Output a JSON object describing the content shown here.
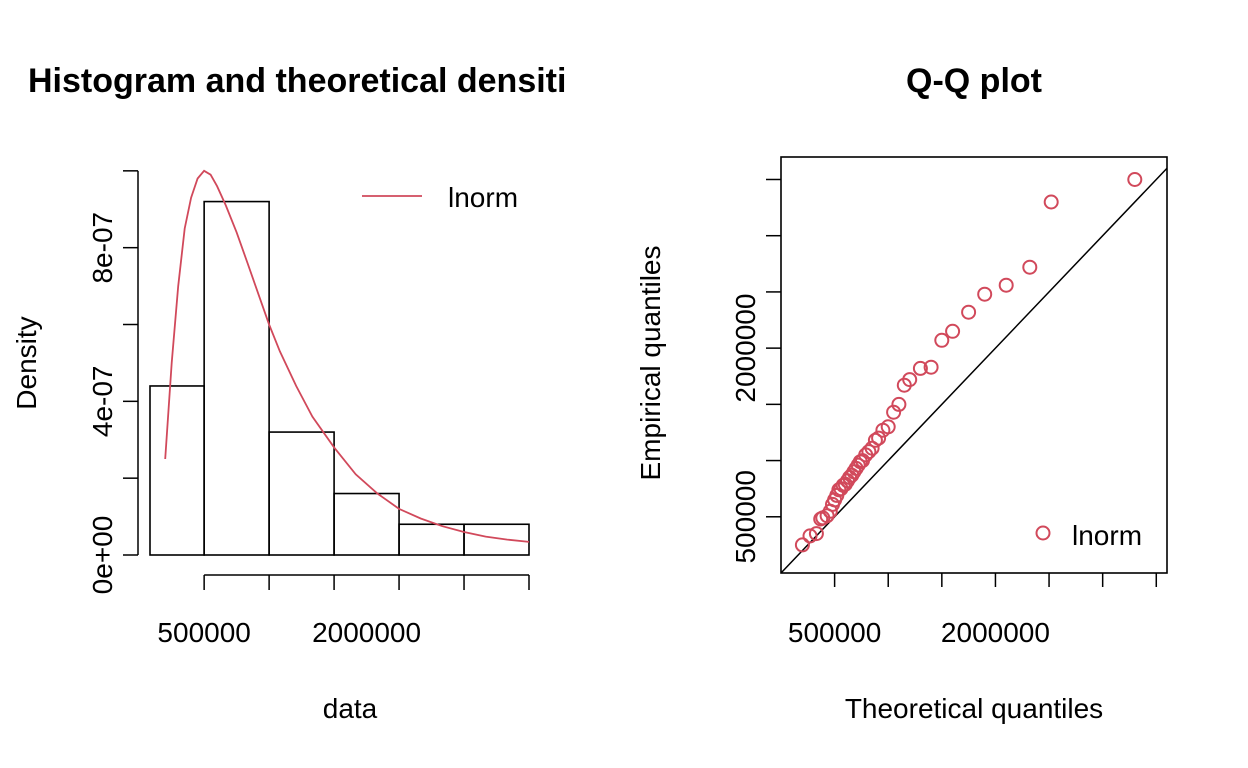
{
  "colors": {
    "fit_line": "#d1495b",
    "points": "#d1495b",
    "axis": "#000000",
    "background": "#ffffff"
  },
  "chart_data": [
    {
      "type": "bar",
      "subtype": "histogram-with-density",
      "title": "Histogram and theoretical densiti",
      "xlabel": "data",
      "ylabel": "Density",
      "xlim": [
        0,
        3500000
      ],
      "ylim": [
        0,
        1.01e-06
      ],
      "x_ticks": [
        500000,
        1100000,
        1700000,
        2300000,
        2900000,
        3500000
      ],
      "x_tick_labels": [
        {
          "value": 500000,
          "label": "500000"
        },
        {
          "value": 2000000,
          "label": "2000000"
        }
      ],
      "y_ticks": [
        0,
        2e-07,
        4e-07,
        6e-07,
        8e-07,
        1e-06
      ],
      "y_tick_labels": [
        {
          "value": 0,
          "label": "0e+00"
        },
        {
          "value": 4e-07,
          "label": "4e-07"
        },
        {
          "value": 8e-07,
          "label": "8e-07"
        }
      ],
      "bins": [
        {
          "x0": 0,
          "x1": 500000,
          "density": 4.4e-07
        },
        {
          "x0": 500000,
          "x1": 1100000,
          "density": 9.2e-07
        },
        {
          "x0": 1100000,
          "x1": 1700000,
          "density": 3.2e-07
        },
        {
          "x0": 1700000,
          "x1": 2300000,
          "density": 1.6e-07
        },
        {
          "x0": 2300000,
          "x1": 2900000,
          "density": 8e-08
        },
        {
          "x0": 2900000,
          "x1": 3500000,
          "density": 8e-08
        }
      ],
      "density_curve": {
        "name": "lnorm",
        "x": [
          140000,
          200000,
          260000,
          320000,
          380000,
          440000,
          500000,
          560000,
          620000,
          700000,
          800000,
          900000,
          1000000,
          1100000,
          1200000,
          1350000,
          1500000,
          1700000,
          1900000,
          2100000,
          2300000,
          2500000,
          2700000,
          2900000,
          3100000,
          3300000,
          3500000
        ],
        "y": [
          2.5e-07,
          5e-07,
          7e-07,
          8.5e-07,
          9.3e-07,
          9.8e-07,
          1e-06,
          9.9e-07,
          9.6e-07,
          9.1e-07,
          8.4e-07,
          7.6e-07,
          6.8e-07,
          6e-07,
          5.3e-07,
          4.4e-07,
          3.6e-07,
          2.8e-07,
          2.1e-07,
          1.6e-07,
          1.2e-07,
          9.5e-08,
          7.5e-08,
          6e-08,
          4.8e-08,
          4e-08,
          3.4e-08
        ]
      },
      "legend": {
        "position": "top-right",
        "entries": [
          {
            "label": "lnorm",
            "kind": "line"
          }
        ]
      }
    },
    {
      "type": "scatter",
      "subtype": "qq-plot",
      "title": "Q-Q plot",
      "xlabel": "Theoretical quantiles",
      "ylabel": "Empirical quantiles",
      "xlim": [
        0,
        3600000
      ],
      "ylim": [
        0,
        3700000
      ],
      "x_ticks": [
        500000,
        1000000,
        1500000,
        2000000,
        2500000,
        3000000,
        3500000
      ],
      "x_tick_labels": [
        {
          "value": 500000,
          "label": "500000"
        },
        {
          "value": 2000000,
          "label": "2000000"
        }
      ],
      "y_ticks": [
        500000,
        1000000,
        1500000,
        2000000,
        2500000,
        3000000,
        3500000
      ],
      "y_tick_labels": [
        {
          "value": 500000,
          "label": "500000"
        },
        {
          "value": 2000000,
          "label": "2000000"
        }
      ],
      "reference_line": {
        "slope": 1,
        "intercept": 0
      },
      "points": {
        "name": "lnorm",
        "x": [
          200000,
          270000,
          330000,
          370000,
          390000,
          430000,
          460000,
          480000,
          500000,
          520000,
          540000,
          560000,
          580000,
          600000,
          620000,
          640000,
          660000,
          680000,
          700000,
          720000,
          740000,
          760000,
          790000,
          820000,
          850000,
          880000,
          910000,
          950000,
          1000000,
          1050000,
          1100000,
          1150000,
          1200000,
          1300000,
          1400000,
          1500000,
          1600000,
          1750000,
          1900000,
          2100000,
          2320000,
          2520000,
          3300000
        ],
        "y": [
          250000,
          330000,
          350000,
          480000,
          490000,
          510000,
          550000,
          610000,
          650000,
          690000,
          740000,
          750000,
          780000,
          790000,
          820000,
          850000,
          870000,
          900000,
          930000,
          960000,
          990000,
          1000000,
          1050000,
          1080000,
          1110000,
          1180000,
          1200000,
          1270000,
          1300000,
          1430000,
          1500000,
          1670000,
          1720000,
          1820000,
          1830000,
          2070000,
          2150000,
          2320000,
          2480000,
          2560000,
          2720000,
          3300000,
          3500000
        ]
      },
      "legend": {
        "position": "bottom-right",
        "entries": [
          {
            "label": "lnorm",
            "kind": "point"
          }
        ]
      }
    }
  ]
}
